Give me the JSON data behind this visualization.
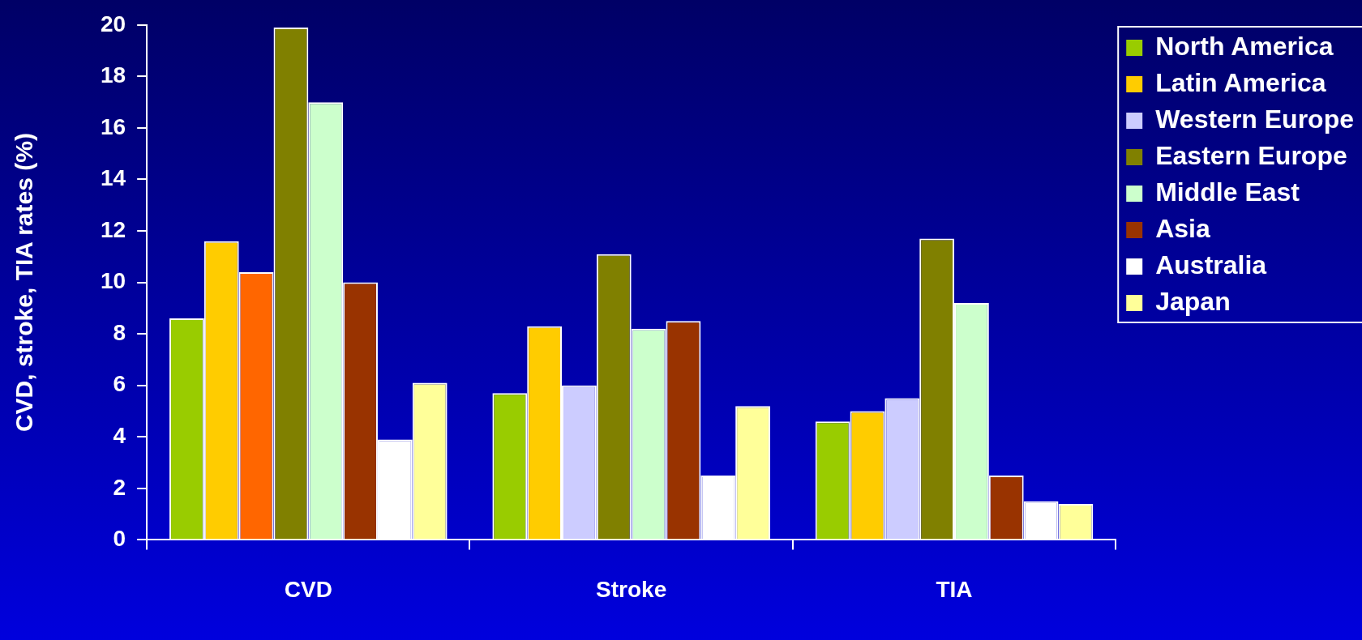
{
  "chart_data": {
    "type": "bar",
    "ylabel": "CVD, stroke, TIA rates (%)",
    "categories": [
      "CVD",
      "Stroke",
      "TIA"
    ],
    "series": [
      {
        "name": "North America",
        "color": "#99cc00",
        "values": [
          8.6,
          5.7,
          4.6
        ]
      },
      {
        "name": "Latin America",
        "color": "#ffcc00",
        "values": [
          11.6,
          8.3,
          5.0
        ]
      },
      {
        "name": "Western Europe",
        "color": "#ccccff",
        "colors": [
          "#ff6600",
          "#ccccff",
          "#ccccff"
        ],
        "values": [
          10.4,
          6.0,
          5.5
        ]
      },
      {
        "name": "Eastern Europe",
        "color": "#808000",
        "values": [
          19.9,
          11.1,
          11.7
        ]
      },
      {
        "name": "Middle East",
        "color": "#ccffcc",
        "values": [
          17.0,
          8.2,
          9.2
        ]
      },
      {
        "name": "Asia",
        "color": "#993300",
        "values": [
          10.0,
          8.5,
          2.5
        ]
      },
      {
        "name": "Australia",
        "color": "#ffffff",
        "values": [
          3.9,
          2.5,
          1.5
        ]
      },
      {
        "name": "Japan",
        "color": "#ffff99",
        "values": [
          6.1,
          5.2,
          1.4
        ]
      }
    ],
    "ylim": [
      0,
      20
    ],
    "yticks": [
      0,
      2,
      4,
      6,
      8,
      10,
      12,
      14,
      16,
      18,
      20
    ],
    "grid": false,
    "legend": "top right"
  }
}
